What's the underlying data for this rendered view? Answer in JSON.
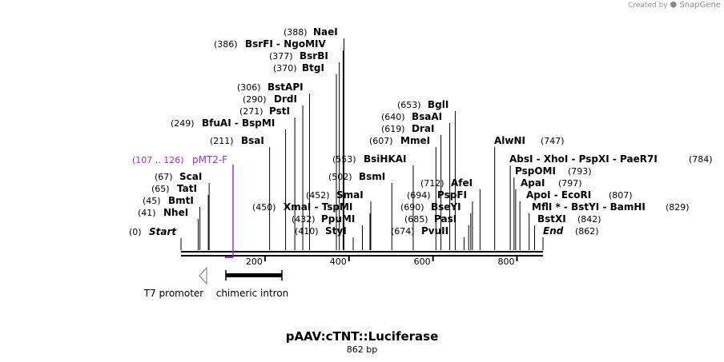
{
  "brand": {
    "created_by": "Created by",
    "logo": "SnapGene"
  },
  "map": {
    "title": "pAAV:cTNT::Luciferase",
    "length_label": "862 bp",
    "colors": {
      "line": "#000000",
      "primer": "#9933cc",
      "text": "#000000"
    }
  },
  "sites": [
    {
      "pos": "(0)",
      "name": "Start",
      "italic": true
    },
    {
      "pos": "(41)",
      "name": "NheI"
    },
    {
      "pos": "(45)",
      "name": "BmtI"
    },
    {
      "pos": "(65)",
      "name": "TatI"
    },
    {
      "pos": "(67)",
      "name": "ScaI"
    },
    {
      "pos": "(211)",
      "name": "BsaI"
    },
    {
      "pos": "(249)",
      "name": "BfuAI  -  BspMI"
    },
    {
      "pos": "(271)",
      "name": "PstI"
    },
    {
      "pos": "(290)",
      "name": "DrdI"
    },
    {
      "pos": "(306)",
      "name": "BstAPI"
    },
    {
      "pos": "(370)",
      "name": "BtgI"
    },
    {
      "pos": "(377)",
      "name": "BsrBI"
    },
    {
      "pos": "(386)",
      "name": "BsrFI  -  NgoMIV"
    },
    {
      "pos": "(388)",
      "name": "NaeI"
    },
    {
      "pos": "(410)",
      "name": "StyI"
    },
    {
      "pos": "(432)",
      "name": "PpuMI"
    },
    {
      "pos": "(450)",
      "name": "XmaI  -  TspMI"
    },
    {
      "pos": "(452)",
      "name": "SmaI"
    },
    {
      "pos": "(502)",
      "name": "BsmI"
    },
    {
      "pos": "(553)",
      "name": "BsiHKAI"
    },
    {
      "pos": "(607)",
      "name": "MmeI"
    },
    {
      "pos": "(619)",
      "name": "DraI"
    },
    {
      "pos": "(640)",
      "name": "BsaAI"
    },
    {
      "pos": "(653)",
      "name": "BglI"
    },
    {
      "pos": "(674)",
      "name": "PvuII"
    },
    {
      "pos": "(685)",
      "name": "PasI"
    },
    {
      "pos": "(690)",
      "name": "BseYI"
    },
    {
      "pos": "(694)",
      "name": "PspFI"
    },
    {
      "pos": "(712)",
      "name": "AfeI"
    },
    {
      "pos": "(747)",
      "name": "AlwNI"
    },
    {
      "pos": "(784)",
      "name": "AbsI  -  XhoI  -  PspXI  -  PaeR7I"
    },
    {
      "pos": "(793)",
      "name": "PspOMI"
    },
    {
      "pos": "(797)",
      "name": "ApaI"
    },
    {
      "pos": "(807)",
      "name": "ApoI  -  EcoRI"
    },
    {
      "pos": "(829)",
      "name": "MflI *  -  BstYI  -  BamHI"
    },
    {
      "pos": "(842)",
      "name": "BstXI"
    },
    {
      "pos": "(862)",
      "name": "End",
      "italic": true
    }
  ],
  "primer": {
    "range": "(107 .. 126)",
    "name": "pMT2-F"
  },
  "features": [
    {
      "name": "T7 promoter"
    },
    {
      "name": "chimeric intron"
    }
  ],
  "ruler": [
    "200",
    "400",
    "600",
    "800"
  ]
}
